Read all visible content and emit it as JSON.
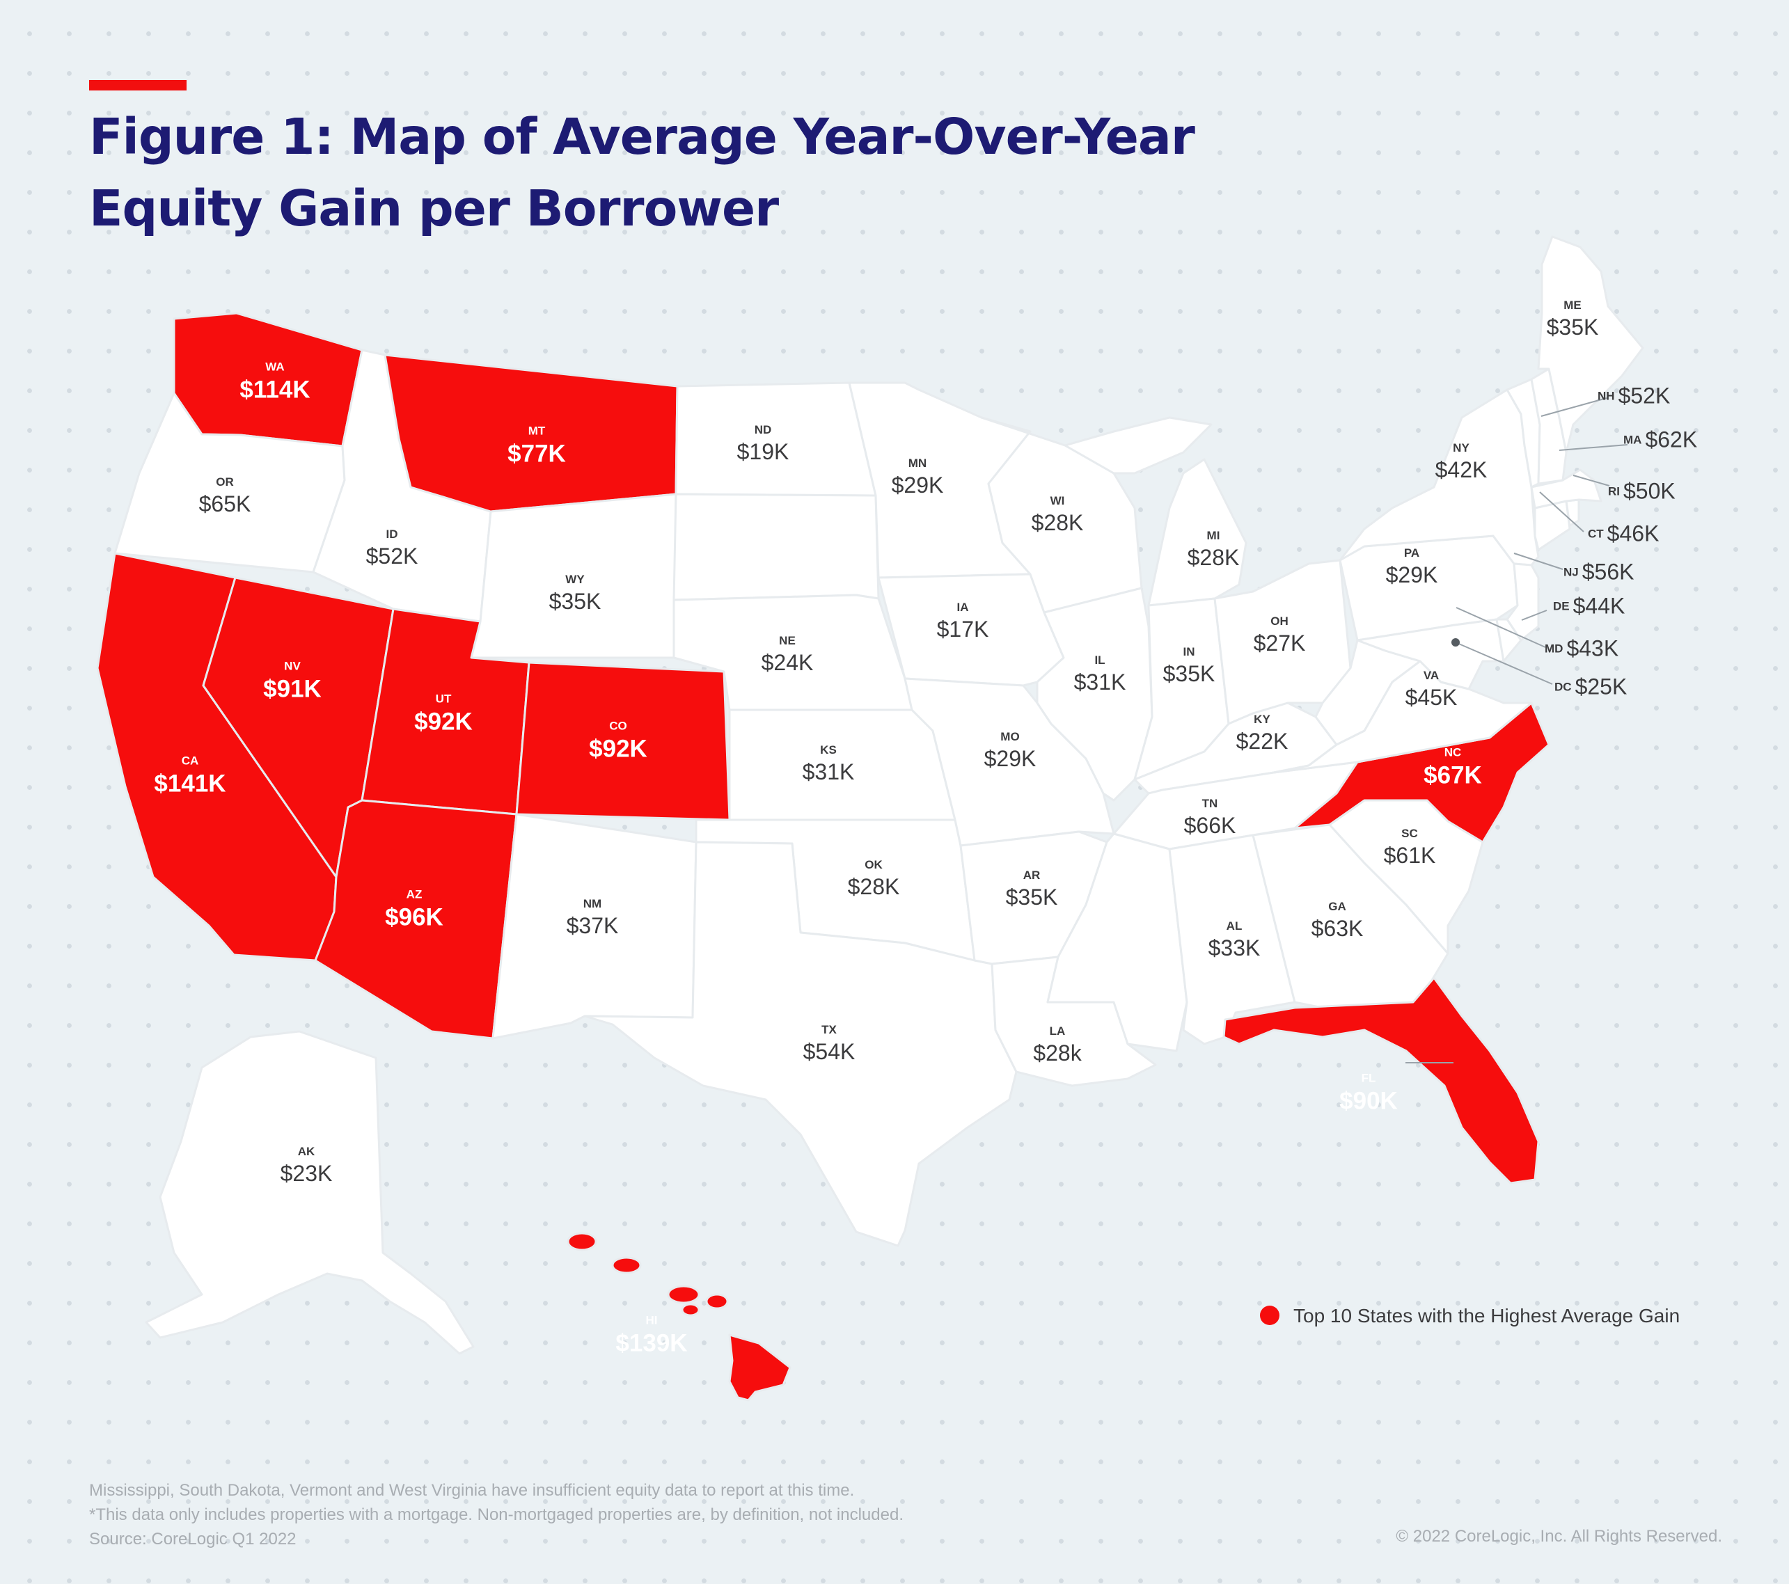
{
  "title": {
    "line1": "Figure 1: Map of Average Year-Over-Year",
    "line2": "Equity Gain per Borrower"
  },
  "colors": {
    "highlight": "#f60d0d",
    "default_state": "#ffffff",
    "title": "#1d1b73",
    "label": "#3b3b3d"
  },
  "states": {
    "WA": {
      "abbr": "WA",
      "value": "$114K",
      "top10": true
    },
    "OR": {
      "abbr": "OR",
      "value": "$65K",
      "top10": false
    },
    "CA": {
      "abbr": "CA",
      "value": "$141K",
      "top10": true
    },
    "NV": {
      "abbr": "NV",
      "value": "$91K",
      "top10": true
    },
    "ID": {
      "abbr": "ID",
      "value": "$52K",
      "top10": false
    },
    "MT": {
      "abbr": "MT",
      "value": "$77K",
      "top10": true
    },
    "WY": {
      "abbr": "WY",
      "value": "$35K",
      "top10": false
    },
    "UT": {
      "abbr": "UT",
      "value": "$92K",
      "top10": true
    },
    "CO": {
      "abbr": "CO",
      "value": "$92K",
      "top10": true
    },
    "AZ": {
      "abbr": "AZ",
      "value": "$96K",
      "top10": true
    },
    "NM": {
      "abbr": "NM",
      "value": "$37K",
      "top10": false
    },
    "ND": {
      "abbr": "ND",
      "value": "$19K",
      "top10": false
    },
    "NE": {
      "abbr": "NE",
      "value": "$24K",
      "top10": false
    },
    "KS": {
      "abbr": "KS",
      "value": "$31K",
      "top10": false
    },
    "OK": {
      "abbr": "OK",
      "value": "$28K",
      "top10": false
    },
    "TX": {
      "abbr": "TX",
      "value": "$54K",
      "top10": false
    },
    "MN": {
      "abbr": "MN",
      "value": "$29K",
      "top10": false
    },
    "IA": {
      "abbr": "IA",
      "value": "$17K",
      "top10": false
    },
    "MO": {
      "abbr": "MO",
      "value": "$29K",
      "top10": false
    },
    "AR": {
      "abbr": "AR",
      "value": "$35K",
      "top10": false
    },
    "LA": {
      "abbr": "LA",
      "value": "$28k",
      "top10": false
    },
    "WI": {
      "abbr": "WI",
      "value": "$28K",
      "top10": false
    },
    "IL": {
      "abbr": "IL",
      "value": "$31K",
      "top10": false
    },
    "MI": {
      "abbr": "MI",
      "value": "$28K",
      "top10": false
    },
    "IN": {
      "abbr": "IN",
      "value": "$35K",
      "top10": false
    },
    "OH": {
      "abbr": "OH",
      "value": "$27K",
      "top10": false
    },
    "KY": {
      "abbr": "KY",
      "value": "$22K",
      "top10": false
    },
    "TN": {
      "abbr": "TN",
      "value": "$66K",
      "top10": false
    },
    "AL": {
      "abbr": "AL",
      "value": "$33K",
      "top10": false
    },
    "GA": {
      "abbr": "GA",
      "value": "$63K",
      "top10": false
    },
    "FL": {
      "abbr": "FL",
      "value": "$90K",
      "top10": true
    },
    "SC": {
      "abbr": "SC",
      "value": "$61K",
      "top10": false
    },
    "NC": {
      "abbr": "NC",
      "value": "$67K",
      "top10": true
    },
    "VA": {
      "abbr": "VA",
      "value": "$45K",
      "top10": false
    },
    "PA": {
      "abbr": "PA",
      "value": "$29K",
      "top10": false
    },
    "NY": {
      "abbr": "NY",
      "value": "$42K",
      "top10": false
    },
    "ME": {
      "abbr": "ME",
      "value": "$35K",
      "top10": false
    },
    "NH": {
      "abbr": "NH",
      "value": "$52K",
      "top10": false
    },
    "MA": {
      "abbr": "MA",
      "value": "$62K",
      "top10": false
    },
    "RI": {
      "abbr": "RI",
      "value": "$50K",
      "top10": false
    },
    "CT": {
      "abbr": "CT",
      "value": "$46K",
      "top10": false
    },
    "NJ": {
      "abbr": "NJ",
      "value": "$56K",
      "top10": false
    },
    "DE": {
      "abbr": "DE",
      "value": "$44K",
      "top10": false
    },
    "MD": {
      "abbr": "MD",
      "value": "$43K",
      "top10": false
    },
    "DC": {
      "abbr": "DC",
      "value": "$25K",
      "top10": false
    },
    "AK": {
      "abbr": "AK",
      "value": "$23K",
      "top10": false
    },
    "HI": {
      "abbr": "HI",
      "value": "$139K",
      "top10": true
    }
  },
  "legend": {
    "label": "Top 10 States with the Highest Average Gain"
  },
  "notes": {
    "line1": "Mississippi, South Dakota, Vermont and West Virginia  have insufficient equity data to report at this time.",
    "line2": "*This data only includes properties with a mortgage. Non-mortgaged properties are, by definition, not included.",
    "line3": "Source: CoreLogic Q1 2022"
  },
  "copyright": "© 2022 CoreLogic, Inc. All Rights Reserved."
}
